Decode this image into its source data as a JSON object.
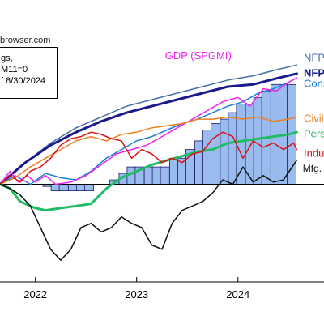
{
  "source_text": "browser.com",
  "note_lines": [
    "gs,",
    "M11=0",
    "f 8/30/2024"
  ],
  "chart_data": {
    "type": "line",
    "xlim": [
      2021.65,
      2024.85
    ],
    "ylim": [
      -0.045,
      0.07
    ],
    "grid": false,
    "x_ticks": [
      {
        "value": 2022.0,
        "label": "2022"
      },
      {
        "value": 2023.0,
        "label": "2023"
      },
      {
        "value": 2024.0,
        "label": "2024"
      }
    ],
    "bars": {
      "name": "GDP (SPGMI)",
      "color": "#99bbee",
      "x": [
        2021.78,
        2021.87,
        2021.95,
        2022.03,
        2022.12,
        2022.2,
        2022.28,
        2022.37,
        2022.45,
        2022.53,
        2022.62,
        2022.7,
        2022.78,
        2022.87,
        2022.95,
        2023.03,
        2023.12,
        2023.2,
        2023.28,
        2023.37,
        2023.45,
        2023.53,
        2023.62,
        2023.7,
        2023.78,
        2023.87,
        2023.95,
        2024.03,
        2024.12,
        2024.2,
        2024.28,
        2024.37,
        2024.45,
        2024.53
      ],
      "values": [
        0.0,
        0.0,
        0.0,
        0.0,
        -0.001,
        -0.003,
        -0.003,
        -0.003,
        -0.003,
        -0.003,
        0.0,
        0.0,
        0.002,
        0.005,
        0.008,
        0.008,
        0.008,
        0.008,
        0.008,
        0.012,
        0.012,
        0.016,
        0.02,
        0.025,
        0.028,
        0.03,
        0.033,
        0.037,
        0.037,
        0.04,
        0.043,
        0.046,
        0.046,
        0.046
      ]
    },
    "series": [
      {
        "name": "NFP",
        "color": "#4a6fa5",
        "width": 1.5,
        "x": [
          2021.65,
          2021.9,
          2022.15,
          2022.4,
          2022.65,
          2022.9,
          2023.15,
          2023.4,
          2023.65,
          2023.9,
          2024.15,
          2024.4,
          2024.58
        ],
        "y": [
          0.0,
          0.01,
          0.019,
          0.026,
          0.031,
          0.036,
          0.039,
          0.042,
          0.045,
          0.048,
          0.05,
          0.053,
          0.055
        ]
      },
      {
        "name": "NFP",
        "color": "#1a1a8c",
        "width": 3,
        "x": [
          2021.65,
          2021.9,
          2022.15,
          2022.4,
          2022.65,
          2022.9,
          2023.15,
          2023.4,
          2023.65,
          2023.9,
          2024.15,
          2024.4,
          2024.58
        ],
        "y": [
          0.0,
          0.01,
          0.018,
          0.024,
          0.029,
          0.033,
          0.036,
          0.039,
          0.042,
          0.045,
          0.046,
          0.049,
          0.051
        ]
      },
      {
        "name": "Cons",
        "color": "#1e7fd8",
        "width": 1.5,
        "x": [
          2021.65,
          2021.8,
          2021.95,
          2022.1,
          2022.25,
          2022.4,
          2022.55,
          2022.7,
          2022.85,
          2023.0,
          2023.15,
          2023.3,
          2023.45,
          2023.6,
          2023.75,
          2023.9,
          2024.05,
          2024.2,
          2024.35,
          2024.5,
          2024.58
        ],
        "y": [
          0.0,
          0.004,
          0.0,
          0.005,
          0.003,
          0.002,
          0.006,
          0.012,
          0.016,
          0.02,
          0.022,
          0.025,
          0.028,
          0.03,
          0.033,
          0.036,
          0.038,
          0.042,
          0.044,
          0.047,
          0.049
        ]
      },
      {
        "name": "GDP (SPGMI)",
        "color": "#ee22ee",
        "width": 1.5,
        "x": [
          2021.65,
          2021.75,
          2021.83,
          2021.92,
          2022.0,
          2022.1,
          2022.2,
          2022.35,
          2022.5,
          2022.65,
          2022.8,
          2022.95,
          2023.1,
          2023.25,
          2023.4,
          2023.55,
          2023.7,
          2023.85,
          2024.0,
          2024.12,
          2024.25,
          2024.38,
          2024.5,
          2024.58
        ],
        "y": [
          0.0,
          0.006,
          0.001,
          0.004,
          0.001,
          0.004,
          0.0,
          0.001,
          0.004,
          0.009,
          0.014,
          0.016,
          0.018,
          0.022,
          0.026,
          0.03,
          0.034,
          0.038,
          0.04,
          0.036,
          0.044,
          0.043,
          0.047,
          0.049
        ]
      },
      {
        "name": "Civili",
        "color": "#f08020",
        "width": 1.5,
        "x": [
          2021.65,
          2021.8,
          2021.95,
          2022.1,
          2022.25,
          2022.4,
          2022.55,
          2022.7,
          2022.85,
          2023.0,
          2023.15,
          2023.3,
          2023.45,
          2023.6,
          2023.75,
          2023.9,
          2024.05,
          2024.2,
          2024.35,
          2024.5,
          2024.58
        ],
        "y": [
          0.0,
          0.003,
          0.008,
          0.012,
          0.016,
          0.02,
          0.022,
          0.02,
          0.023,
          0.024,
          0.026,
          0.027,
          0.028,
          0.03,
          0.03,
          0.031,
          0.03,
          0.031,
          0.029,
          0.03,
          0.031
        ]
      },
      {
        "name": "Perso",
        "color": "#22bb66",
        "width": 3,
        "x": [
          2021.65,
          2021.75,
          2021.85,
          2022.0,
          2022.1,
          2022.25,
          2022.4,
          2022.55,
          2022.7,
          2022.85,
          2023.0,
          2023.15,
          2023.3,
          2023.45,
          2023.6,
          2023.75,
          2023.9,
          2024.05,
          2024.2,
          2024.35,
          2024.5,
          2024.58
        ],
        "y": [
          0.0,
          -0.002,
          -0.008,
          -0.011,
          -0.012,
          -0.011,
          -0.01,
          -0.009,
          -0.002,
          0.003,
          0.006,
          0.009,
          0.011,
          0.013,
          0.015,
          0.016,
          0.019,
          0.02,
          0.021,
          0.022,
          0.023,
          0.024
        ]
      },
      {
        "name": "Indus",
        "color": "#dd1111",
        "width": 1.5,
        "x": [
          2021.65,
          2021.75,
          2021.85,
          2021.95,
          2022.05,
          2022.15,
          2022.25,
          2022.35,
          2022.45,
          2022.55,
          2022.65,
          2022.75,
          2022.85,
          2022.95,
          2023.05,
          2023.15,
          2023.25,
          2023.35,
          2023.45,
          2023.55,
          2023.65,
          2023.75,
          2023.85,
          2023.95,
          2024.05,
          2024.15,
          2024.25,
          2024.35,
          2024.45,
          2024.55,
          2024.58
        ],
        "y": [
          0.0,
          0.004,
          0.001,
          0.006,
          0.008,
          0.012,
          0.018,
          0.021,
          0.022,
          0.024,
          0.023,
          0.021,
          0.02,
          0.012,
          0.016,
          0.014,
          0.01,
          0.012,
          0.01,
          0.014,
          0.015,
          0.021,
          0.024,
          0.022,
          0.012,
          0.02,
          0.017,
          0.019,
          0.016,
          0.019,
          0.016
        ]
      },
      {
        "name": "Mfg. &",
        "color": "#111111",
        "width": 1.5,
        "x": [
          2021.65,
          2021.75,
          2021.85,
          2021.95,
          2022.05,
          2022.15,
          2022.25,
          2022.35,
          2022.45,
          2022.55,
          2022.65,
          2022.75,
          2022.85,
          2022.95,
          2023.05,
          2023.15,
          2023.25,
          2023.35,
          2023.45,
          2023.55,
          2023.65,
          2023.75,
          2023.85,
          2023.95,
          2024.05,
          2024.15,
          2024.25,
          2024.35,
          2024.45,
          2024.55,
          2024.58
        ],
        "y": [
          0.0,
          -0.002,
          -0.005,
          -0.01,
          -0.02,
          -0.03,
          -0.035,
          -0.03,
          -0.02,
          -0.018,
          -0.022,
          -0.02,
          -0.015,
          -0.018,
          -0.02,
          -0.028,
          -0.03,
          -0.018,
          -0.012,
          -0.01,
          -0.008,
          -0.004,
          0.002,
          0.0,
          0.008,
          0.001,
          0.004,
          0.001,
          0.002,
          0.009,
          0.011
        ]
      }
    ],
    "labels": [
      {
        "text": "NFP",
        "color": "#4a6fa5",
        "x": 2024.65,
        "y": 0.058,
        "bold": false,
        "size": 13
      },
      {
        "text": "NFP",
        "color": "#1a1a8c",
        "x": 2024.65,
        "y": 0.051,
        "bold": true,
        "size": 13
      },
      {
        "text": "Cons",
        "color": "#1e7fd8",
        "x": 2024.65,
        "y": 0.046,
        "bold": false,
        "size": 13
      },
      {
        "text": "GDP (SPGMI)",
        "color": "#ee22ee",
        "x": 2023.28,
        "y": 0.059,
        "bold": false,
        "size": 13
      },
      {
        "text": "Civili",
        "color": "#f08020",
        "x": 2024.65,
        "y": 0.03,
        "bold": false,
        "size": 13
      },
      {
        "text": "Perso",
        "color": "#22bb66",
        "x": 2024.65,
        "y": 0.023,
        "bold": false,
        "size": 13
      },
      {
        "text": "Indus",
        "color": "#dd1111",
        "x": 2024.65,
        "y": 0.014,
        "bold": false,
        "size": 13
      },
      {
        "text": "Mfg. &",
        "color": "#111111",
        "x": 2024.64,
        "y": 0.007,
        "bold": false,
        "size": 12
      }
    ]
  }
}
